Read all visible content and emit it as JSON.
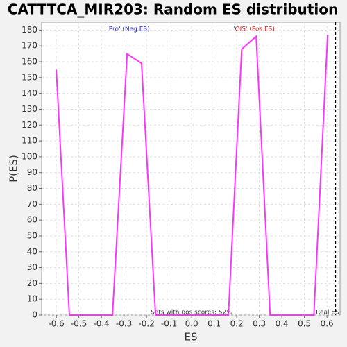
{
  "chart_data": {
    "type": "line",
    "title": "CATTTCA_MIR203: Random ES distribution",
    "x_label": "ES",
    "y_label": "P(ES)",
    "x": [
      -0.6,
      -0.542,
      -0.351,
      -0.286,
      -0.222,
      -0.16,
      0.163,
      0.222,
      0.286,
      0.348,
      0.542,
      0.603
    ],
    "values": [
      155,
      0,
      0,
      165,
      159,
      0,
      0,
      168,
      176,
      0,
      0,
      177
    ],
    "color": "#ff33ff",
    "xlim": [
      -0.665,
      0.658
    ],
    "xticks": [
      -0.6,
      -0.5,
      -0.4,
      -0.3,
      -0.2,
      -0.1,
      {
        "value": 0,
        "label": "0.0"
      },
      0.1,
      0.2,
      0.3,
      0.4,
      0.5,
      0.6
    ],
    "ylim": [
      0,
      185
    ],
    "yticks": [
      0,
      10,
      20,
      30,
      40,
      50,
      60,
      70,
      80,
      90,
      100,
      110,
      120,
      130,
      140,
      150,
      160,
      170,
      180
    ],
    "grid": true,
    "real_es": 0.637,
    "annotations": {
      "neg": "'Pro' (Neg ES)",
      "pos": "'OIS' (Pos ES)",
      "pos_share": "Sets with pos scores: 52%",
      "real_es": "Real ES"
    }
  }
}
